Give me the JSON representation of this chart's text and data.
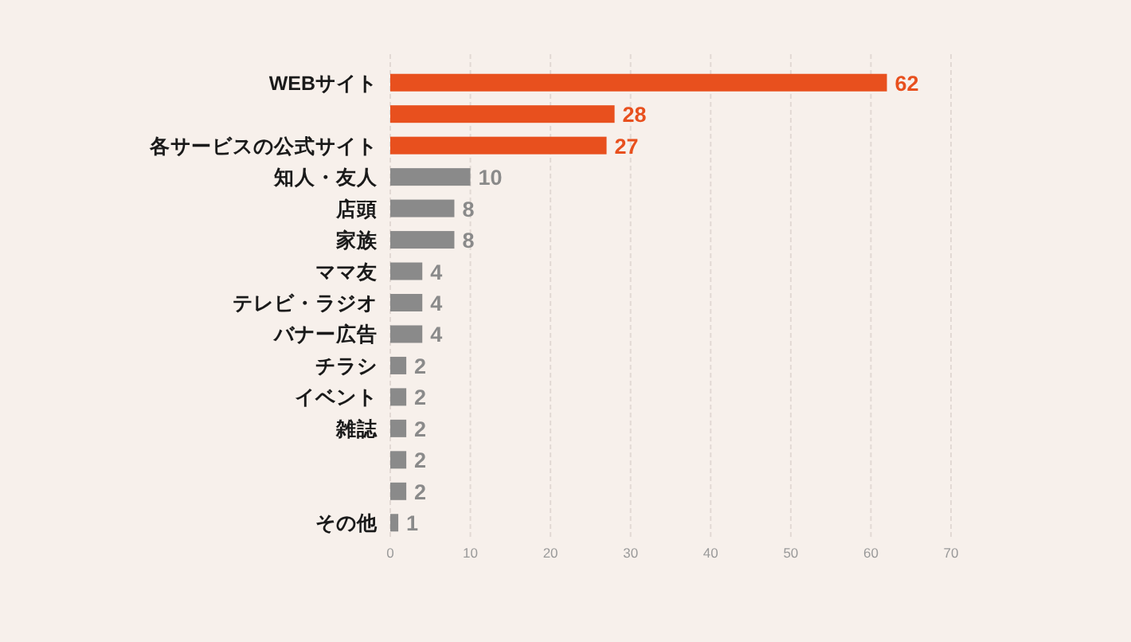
{
  "chart_data": {
    "type": "bar",
    "orientation": "horizontal",
    "categories": [
      "WEBサイト",
      null,
      "各サービスの公式サイト",
      "知人・友人",
      "店頭",
      "家族",
      "ママ友",
      "テレビ・ラジオ",
      "バナー広告",
      "チラシ",
      "イベント",
      "雑誌",
      null,
      null,
      "その他"
    ],
    "values": [
      62,
      28,
      27,
      10,
      8,
      8,
      4,
      4,
      4,
      2,
      2,
      2,
      2,
      2,
      1
    ],
    "colors": [
      "#e8501e",
      "#e8501e",
      "#e8501e",
      "#8a8a8a",
      "#8a8a8a",
      "#8a8a8a",
      "#8a8a8a",
      "#8a8a8a",
      "#8a8a8a",
      "#8a8a8a",
      "#8a8a8a",
      "#8a8a8a",
      "#8a8a8a",
      "#8a8a8a",
      "#8a8a8a"
    ],
    "xlim": [
      0,
      70
    ],
    "xticks": [
      0,
      10,
      20,
      30,
      40,
      50,
      60,
      70
    ],
    "grid": "x",
    "data_labels": true
  }
}
